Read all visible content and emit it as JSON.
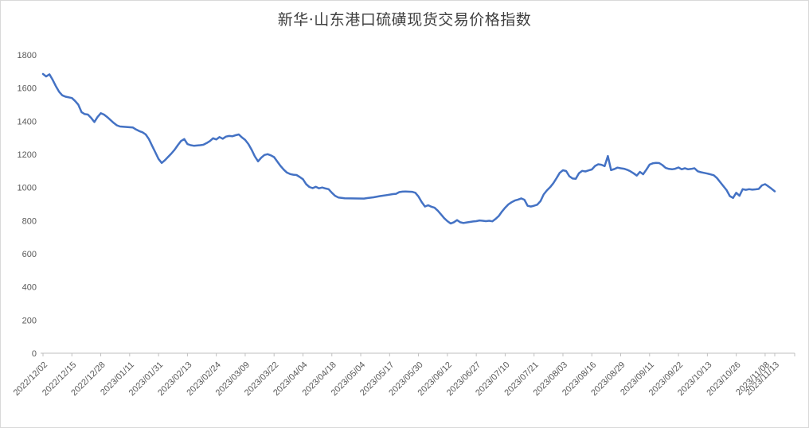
{
  "chart_data": {
    "type": "line",
    "title": "新华·山东港口硫磺现货交易价格指数",
    "xlabel": "",
    "ylabel": "",
    "ylim": [
      0,
      1800
    ],
    "y_ticks": [
      0,
      200,
      400,
      600,
      800,
      1000,
      1200,
      1400,
      1600,
      1800
    ],
    "x_range": [
      0,
      228
    ],
    "grid": "off",
    "legend": "none",
    "x_labels": [
      "2022/12/02",
      "2022/12/15",
      "2022/12/28",
      "2023/01/11",
      "2023/01/31",
      "2023/02/13",
      "2023/02/24",
      "2023/03/09",
      "2023/03/22",
      "2023/04/04",
      "2023/04/18",
      "2023/05/04",
      "2023/05/17",
      "2023/05/30",
      "2023/06/12",
      "2023/06/27",
      "2023/07/10",
      "2023/07/21",
      "2023/08/03",
      "2023/08/16",
      "2023/08/29",
      "2023/09/11",
      "2023/09/22",
      "2023/10/13",
      "2023/10/26",
      "2023/11/08",
      "2023/11/13"
    ],
    "x_label_days": [
      0,
      9,
      18,
      27,
      36,
      45,
      54,
      63,
      72,
      81,
      90,
      99,
      108,
      117,
      126,
      135,
      144,
      153,
      162,
      171,
      180,
      189,
      198,
      207,
      216,
      225,
      228
    ],
    "colors": {
      "line": "#4472C4",
      "axis": "#BFBFBF",
      "tick_label": "#595959",
      "title": "#404040",
      "frame_border": "#D9D9D9",
      "background": "#FFFFFF"
    },
    "series": [
      {
        "name": "新华·山东港口硫磺现货交易价格指数",
        "points": [
          [
            0,
            1685
          ],
          [
            1,
            1670
          ],
          [
            2,
            1683
          ],
          [
            3,
            1650
          ],
          [
            4,
            1612
          ],
          [
            5,
            1578
          ],
          [
            6,
            1556
          ],
          [
            7,
            1548
          ],
          [
            9,
            1540
          ],
          [
            10,
            1522
          ],
          [
            11,
            1500
          ],
          [
            12,
            1455
          ],
          [
            13,
            1443
          ],
          [
            14,
            1440
          ],
          [
            15,
            1420
          ],
          [
            16,
            1395
          ],
          [
            17,
            1425
          ],
          [
            18,
            1448
          ],
          [
            19,
            1440
          ],
          [
            20,
            1425
          ],
          [
            21,
            1408
          ],
          [
            22,
            1390
          ],
          [
            23,
            1375
          ],
          [
            24,
            1368
          ],
          [
            26,
            1365
          ],
          [
            28,
            1362
          ],
          [
            29,
            1350
          ],
          [
            30,
            1340
          ],
          [
            31,
            1333
          ],
          [
            32,
            1320
          ],
          [
            33,
            1292
          ],
          [
            34,
            1252
          ],
          [
            35,
            1212
          ],
          [
            36,
            1172
          ],
          [
            37,
            1148
          ],
          [
            38,
            1165
          ],
          [
            39,
            1185
          ],
          [
            40,
            1205
          ],
          [
            41,
            1228
          ],
          [
            42,
            1255
          ],
          [
            43,
            1280
          ],
          [
            44,
            1292
          ],
          [
            45,
            1262
          ],
          [
            46,
            1255
          ],
          [
            47,
            1252
          ],
          [
            49,
            1255
          ],
          [
            50,
            1258
          ],
          [
            51,
            1268
          ],
          [
            52,
            1280
          ],
          [
            53,
            1297
          ],
          [
            54,
            1290
          ],
          [
            55,
            1304
          ],
          [
            56,
            1294
          ],
          [
            57,
            1307
          ],
          [
            58,
            1311
          ],
          [
            59,
            1309
          ],
          [
            60,
            1315
          ],
          [
            61,
            1320
          ],
          [
            62,
            1302
          ],
          [
            63,
            1287
          ],
          [
            64,
            1262
          ],
          [
            65,
            1228
          ],
          [
            66,
            1188
          ],
          [
            67,
            1158
          ],
          [
            68,
            1180
          ],
          [
            69,
            1196
          ],
          [
            70,
            1201
          ],
          [
            71,
            1194
          ],
          [
            72,
            1183
          ],
          [
            73,
            1157
          ],
          [
            74,
            1130
          ],
          [
            75,
            1108
          ],
          [
            76,
            1090
          ],
          [
            77,
            1081
          ],
          [
            78,
            1077
          ],
          [
            79,
            1075
          ],
          [
            80,
            1063
          ],
          [
            81,
            1050
          ],
          [
            82,
            1020
          ],
          [
            83,
            1003
          ],
          [
            84,
            996
          ],
          [
            85,
            1004
          ],
          [
            86,
            995
          ],
          [
            87,
            1000
          ],
          [
            88,
            994
          ],
          [
            89,
            990
          ],
          [
            90,
            968
          ],
          [
            91,
            950
          ],
          [
            92,
            940
          ],
          [
            94,
            935
          ],
          [
            100,
            933
          ],
          [
            101,
            936
          ],
          [
            103,
            941
          ],
          [
            105,
            948
          ],
          [
            107,
            954
          ],
          [
            109,
            960
          ],
          [
            110,
            962
          ],
          [
            111,
            972
          ],
          [
            112,
            975
          ],
          [
            113,
            976
          ],
          [
            115,
            974
          ],
          [
            116,
            968
          ],
          [
            117,
            945
          ],
          [
            118,
            912
          ],
          [
            119,
            885
          ],
          [
            120,
            893
          ],
          [
            121,
            884
          ],
          [
            122,
            878
          ],
          [
            123,
            860
          ],
          [
            124,
            838
          ],
          [
            125,
            815
          ],
          [
            126,
            797
          ],
          [
            127,
            783
          ],
          [
            128,
            790
          ],
          [
            129,
            803
          ],
          [
            130,
            790
          ],
          [
            131,
            786
          ],
          [
            132,
            789
          ],
          [
            133,
            792
          ],
          [
            134,
            795
          ],
          [
            135,
            797
          ],
          [
            136,
            801
          ],
          [
            137,
            799
          ],
          [
            138,
            797
          ],
          [
            139,
            799
          ],
          [
            140,
            796
          ],
          [
            141,
            810
          ],
          [
            142,
            828
          ],
          [
            143,
            855
          ],
          [
            144,
            878
          ],
          [
            145,
            898
          ],
          [
            146,
            911
          ],
          [
            147,
            921
          ],
          [
            148,
            927
          ],
          [
            149,
            934
          ],
          [
            150,
            926
          ],
          [
            151,
            890
          ],
          [
            152,
            885
          ],
          [
            153,
            890
          ],
          [
            154,
            896
          ],
          [
            155,
            918
          ],
          [
            156,
            958
          ],
          [
            157,
            982
          ],
          [
            158,
            1002
          ],
          [
            159,
            1026
          ],
          [
            160,
            1056
          ],
          [
            161,
            1088
          ],
          [
            162,
            1104
          ],
          [
            163,
            1099
          ],
          [
            164,
            1068
          ],
          [
            165,
            1054
          ],
          [
            166,
            1052
          ],
          [
            167,
            1086
          ],
          [
            168,
            1100
          ],
          [
            169,
            1097
          ],
          [
            170,
            1103
          ],
          [
            171,
            1109
          ],
          [
            172,
            1130
          ],
          [
            173,
            1140
          ],
          [
            174,
            1137
          ],
          [
            175,
            1129
          ],
          [
            176,
            1190
          ],
          [
            177,
            1105
          ],
          [
            178,
            1111
          ],
          [
            179,
            1120
          ],
          [
            180,
            1116
          ],
          [
            181,
            1113
          ],
          [
            182,
            1107
          ],
          [
            183,
            1098
          ],
          [
            184,
            1086
          ],
          [
            185,
            1072
          ],
          [
            186,
            1094
          ],
          [
            187,
            1080
          ],
          [
            188,
            1108
          ],
          [
            189,
            1138
          ],
          [
            190,
            1146
          ],
          [
            191,
            1148
          ],
          [
            192,
            1147
          ],
          [
            193,
            1135
          ],
          [
            194,
            1118
          ],
          [
            195,
            1112
          ],
          [
            196,
            1110
          ],
          [
            197,
            1113
          ],
          [
            198,
            1121
          ],
          [
            199,
            1110
          ],
          [
            200,
            1116
          ],
          [
            201,
            1110
          ],
          [
            202,
            1112
          ],
          [
            203,
            1116
          ],
          [
            204,
            1098
          ],
          [
            205,
            1092
          ],
          [
            206,
            1088
          ],
          [
            207,
            1084
          ],
          [
            208,
            1079
          ],
          [
            209,
            1074
          ],
          [
            210,
            1057
          ],
          [
            211,
            1032
          ],
          [
            212,
            1008
          ],
          [
            213,
            984
          ],
          [
            214,
            948
          ],
          [
            215,
            937
          ],
          [
            216,
            968
          ],
          [
            217,
            950
          ],
          [
            218,
            990
          ],
          [
            219,
            986
          ],
          [
            220,
            990
          ],
          [
            221,
            987
          ],
          [
            222,
            989
          ],
          [
            223,
            991
          ],
          [
            224,
            1013
          ],
          [
            225,
            1020
          ],
          [
            226,
            1007
          ],
          [
            227,
            992
          ],
          [
            228,
            977
          ]
        ]
      }
    ]
  }
}
